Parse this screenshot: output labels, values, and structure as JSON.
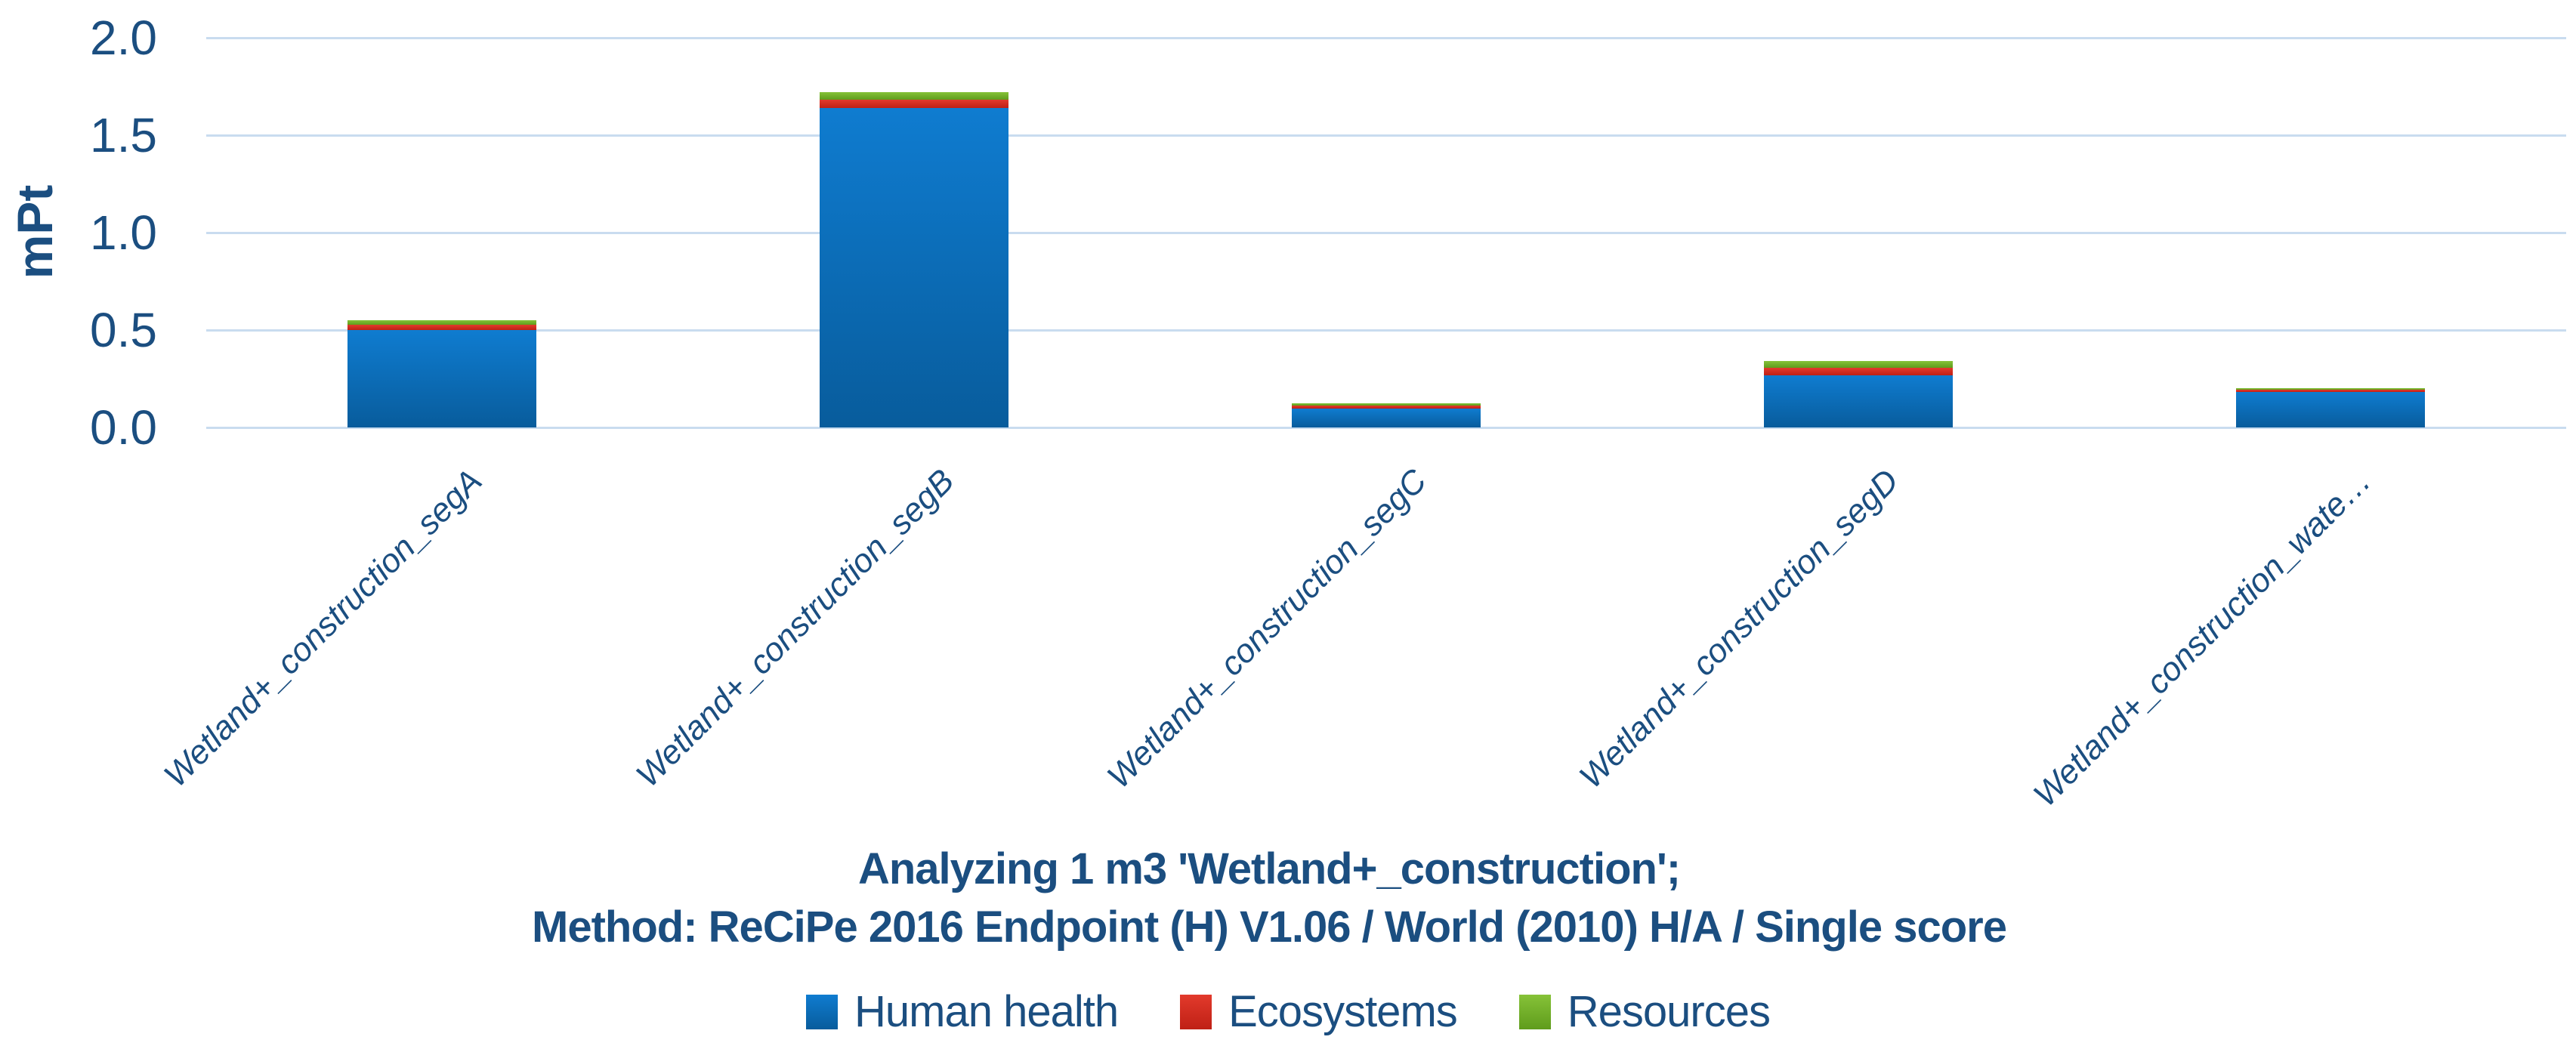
{
  "colors": {
    "text": "#1B4E80",
    "gridline": "#C9DCEF",
    "background": "#FFFFFF"
  },
  "chart_data": {
    "type": "bar",
    "stacked": true,
    "grid": "horizontal",
    "legend_position": "bottom",
    "title_lines": [
      "Analyzing 1 m3 'Wetland+_construction';",
      "Method: ReCiPe 2016 Endpoint (H) V1.06 / World (2010) H/A / Single score"
    ],
    "ylabel": "mPt",
    "ylim": [
      0,
      2.0
    ],
    "yticks": [
      {
        "value": 0.0,
        "label": "0.0"
      },
      {
        "value": 0.5,
        "label": "0.5"
      },
      {
        "value": 1.0,
        "label": "1.0"
      },
      {
        "value": 1.5,
        "label": "1.5"
      },
      {
        "value": 2.0,
        "label": "2.0"
      }
    ],
    "categories": [
      "Wetland+_construction_segA",
      "Wetland+_construction_segB",
      "Wetland+_construction_segC",
      "Wetland+_construction_segD",
      "Wetland+_construction_wate…"
    ],
    "series": [
      {
        "name": "Human health",
        "color": "#0B72C4",
        "color_top": "#0F7CD0",
        "color_bottom": "#085C9C",
        "values": [
          0.5,
          1.64,
          0.098,
          0.266,
          0.184
        ]
      },
      {
        "name": "Ecosystems",
        "color": "#D42B1E",
        "color_top": "#E23A2C",
        "color_bottom": "#BF2015",
        "values": [
          0.028,
          0.043,
          0.016,
          0.039,
          0.01
        ]
      },
      {
        "name": "Resources",
        "color": "#76B02A",
        "color_top": "#86C238",
        "color_bottom": "#5F9C1C",
        "values": [
          0.022,
          0.039,
          0.011,
          0.035,
          0.008
        ]
      }
    ],
    "totals_mPt": [
      0.55,
      1.72,
      0.125,
      0.34,
      0.2
    ]
  }
}
